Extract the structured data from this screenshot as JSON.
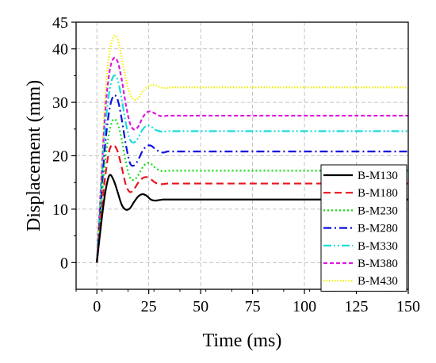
{
  "chart_data": {
    "type": "line",
    "xlabel": "Time (ms)",
    "ylabel": "Displacement (mm)",
    "xlim": [
      -10,
      150
    ],
    "ylim": [
      -5,
      45
    ],
    "xticks": [
      0,
      25,
      50,
      75,
      100,
      125,
      150
    ],
    "yticks": [
      0,
      10,
      20,
      30,
      40,
      45
    ],
    "grid": true,
    "legend_position": "bottom-right",
    "x": [
      0,
      2,
      4,
      6,
      8,
      10,
      12,
      14,
      16,
      18,
      20,
      22,
      24,
      26,
      28,
      30,
      32,
      34,
      36,
      40,
      45,
      50,
      60,
      75,
      100,
      125,
      150
    ],
    "series": [
      {
        "name": "B-M130",
        "color": "#000000",
        "dash": "solid",
        "values": [
          0,
          7,
          13,
          16.3,
          15.5,
          13.2,
          10.8,
          9.9,
          10.2,
          11.4,
          12.4,
          12.8,
          12.5,
          11.8,
          11.6,
          11.7,
          11.8,
          11.8,
          11.8,
          11.8,
          11.8,
          11.8,
          11.8,
          11.8,
          11.8,
          11.8,
          11.8
        ]
      },
      {
        "name": "B-M180",
        "color": "#e8141c",
        "dash": "dashed",
        "values": [
          0,
          8.5,
          16,
          21,
          22,
          20.8,
          17.8,
          14.5,
          13.2,
          13.8,
          15,
          15.8,
          16,
          15.6,
          15,
          14.7,
          14.7,
          14.8,
          14.8,
          14.8,
          14.8,
          14.8,
          14.8,
          14.8,
          14.8,
          14.8,
          14.8
        ]
      },
      {
        "name": "B-M230",
        "color": "#12dd12",
        "dash": "dotted",
        "values": [
          0,
          10,
          19,
          24.5,
          26.8,
          26,
          23,
          18.8,
          15.9,
          15.5,
          16.4,
          17.8,
          18.6,
          18.5,
          17.8,
          17.3,
          17.1,
          17.2,
          17.2,
          17.2,
          17.2,
          17.2,
          17.2,
          17.2,
          17.2,
          17.2,
          17.2
        ]
      },
      {
        "name": "B-M280",
        "color": "#1010e0",
        "dash": "dashdot",
        "values": [
          0,
          11.5,
          22,
          28.5,
          31.2,
          30.5,
          26.8,
          22,
          18.6,
          18.2,
          19.3,
          20.9,
          21.8,
          21.9,
          21.3,
          20.8,
          20.6,
          20.8,
          20.8,
          20.8,
          20.8,
          20.8,
          20.8,
          20.8,
          20.8,
          20.8,
          20.8
        ]
      },
      {
        "name": "B-M330",
        "color": "#19dcdc",
        "dash": "dashdotdot",
        "values": [
          0,
          13,
          25,
          32,
          34.9,
          34.2,
          30.5,
          26,
          23,
          22.5,
          23.4,
          24.9,
          25.6,
          25.5,
          24.9,
          24.6,
          24.5,
          24.6,
          24.6,
          24.6,
          24.6,
          24.6,
          24.6,
          24.6,
          24.6,
          24.6,
          24.6
        ]
      },
      {
        "name": "B-M380",
        "color": "#dd18dd",
        "dash": "shortdash",
        "values": [
          0,
          14.5,
          28,
          35.5,
          38.2,
          37.6,
          34.2,
          29.5,
          26,
          24.9,
          25.5,
          27.1,
          28.1,
          28.3,
          27.9,
          27.5,
          27.4,
          27.5,
          27.5,
          27.5,
          27.5,
          27.5,
          27.5,
          27.5,
          27.5,
          27.5,
          27.5
        ]
      },
      {
        "name": "B-M430",
        "color": "#f0f000",
        "dash": "shortdot",
        "values": [
          0,
          16,
          31,
          39,
          42.2,
          41.8,
          38.2,
          34.3,
          31.5,
          30.5,
          30.8,
          32,
          32.8,
          33.2,
          33.2,
          32.9,
          32.7,
          32.7,
          32.8,
          32.8,
          32.8,
          32.8,
          32.8,
          32.8,
          32.8,
          32.8,
          32.8
        ]
      }
    ]
  }
}
